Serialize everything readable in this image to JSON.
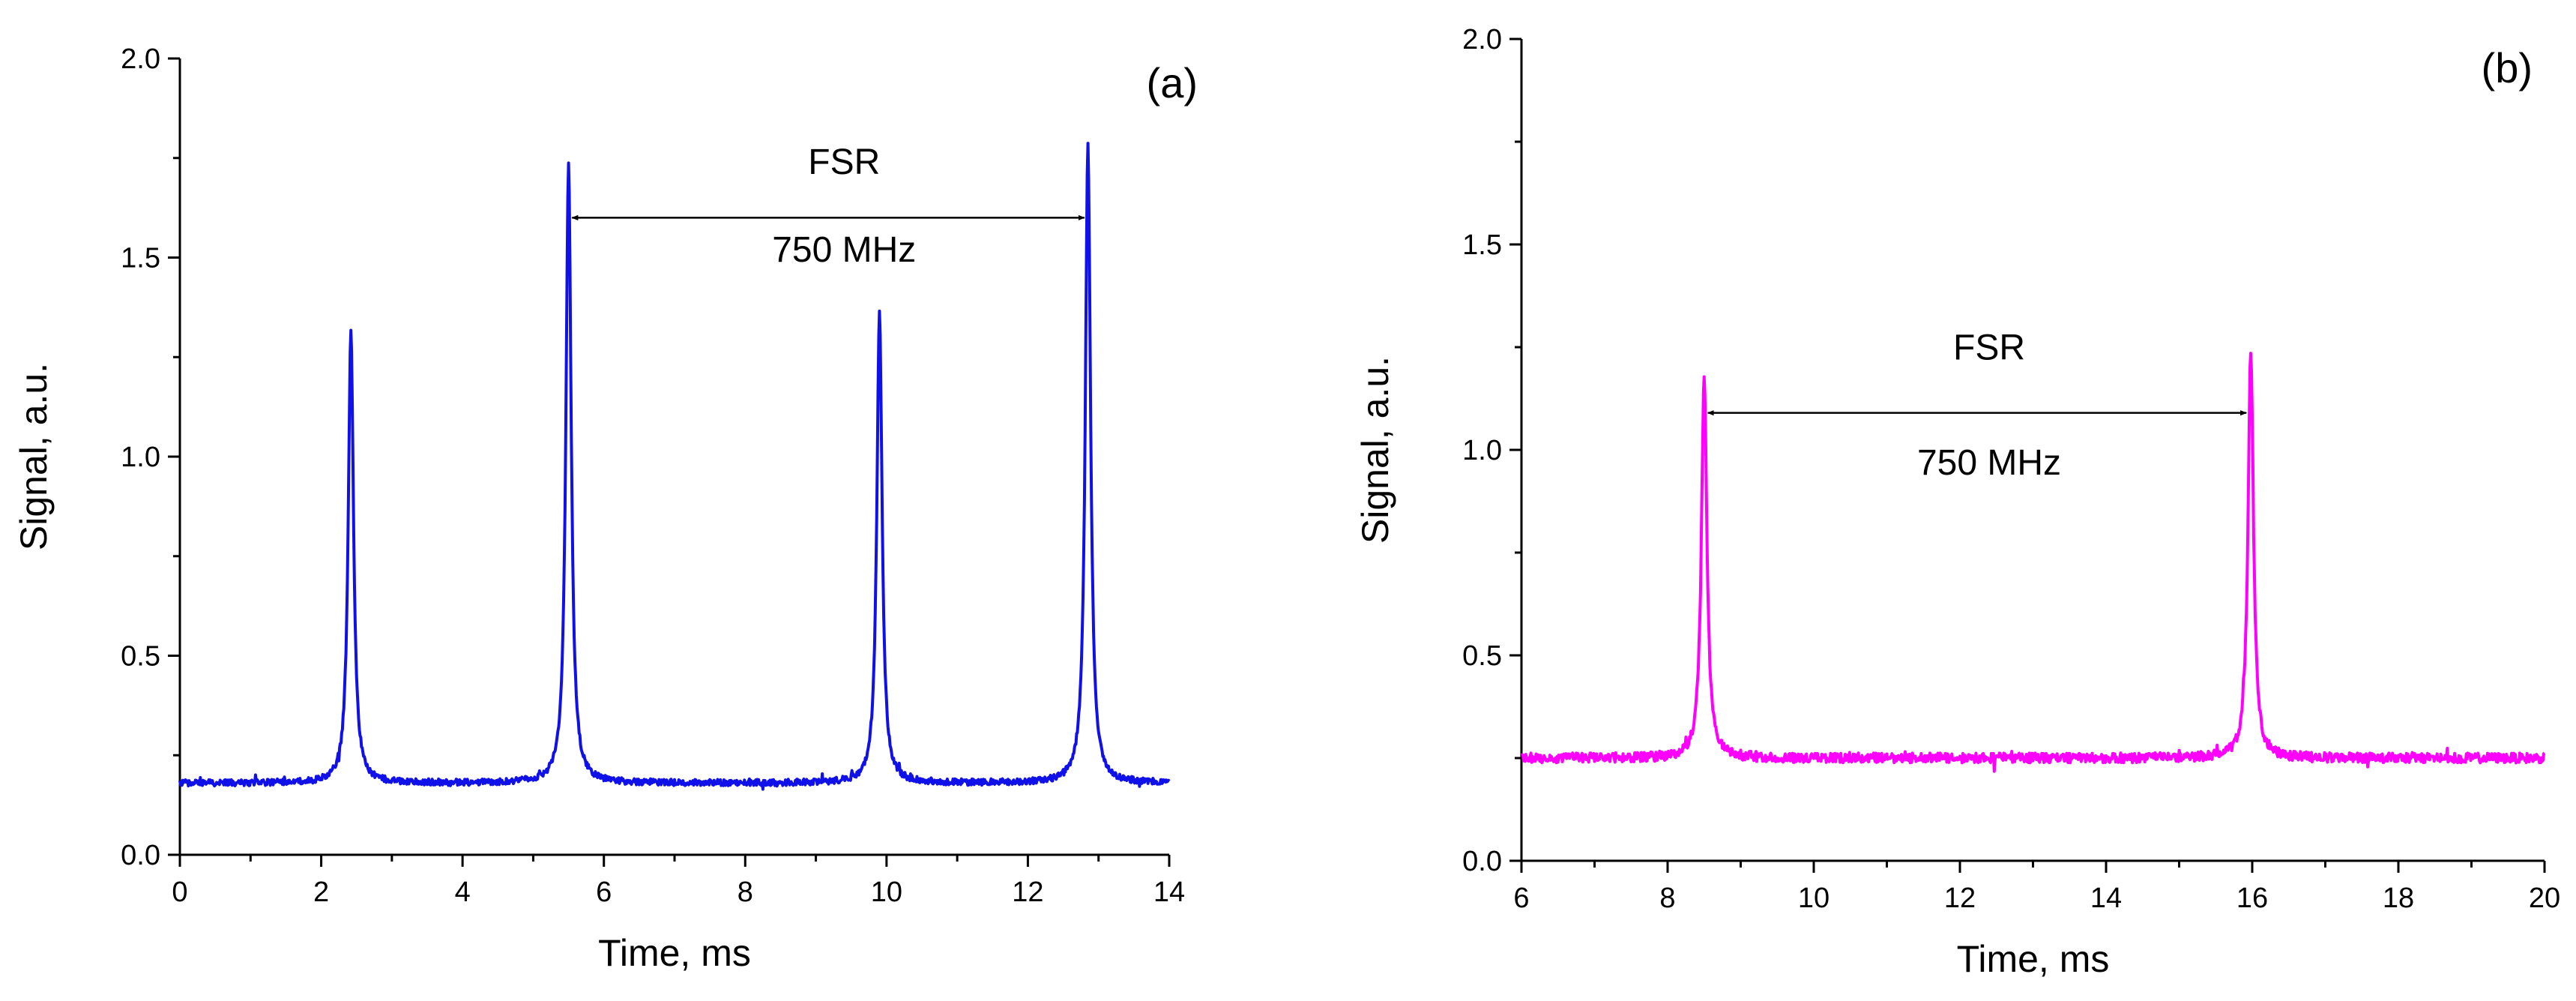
{
  "chart_data": [
    {
      "type": "line",
      "panel_label": "(a)",
      "xlabel": "Time, ms",
      "ylabel": "Signal, a.u.",
      "xlim": [
        0,
        14
      ],
      "ylim": [
        0,
        2.0
      ],
      "x_ticks": [
        0,
        2,
        4,
        6,
        8,
        10,
        12,
        14
      ],
      "x_tick_labels": [
        "0",
        "2",
        "4",
        "6",
        "8",
        "10",
        "12",
        "14"
      ],
      "y_ticks": [
        0,
        0.5,
        1.0,
        1.5,
        2.0
      ],
      "y_tick_labels": [
        "0.0",
        "0.5",
        "1.0",
        "1.5",
        "2.0"
      ],
      "series": [
        {
          "name": "signal (a)",
          "color": "#1010e8",
          "baseline": 0.18,
          "noise": 0.008,
          "x_step": 0.01,
          "peaks": [
            {
              "center": 2.42,
              "height": 1.32
            },
            {
              "center": 5.5,
              "height": 1.73
            },
            {
              "center": 9.9,
              "height": 1.36
            },
            {
              "center": 12.85,
              "height": 1.78
            }
          ]
        }
      ],
      "annotations": [
        {
          "type": "double-arrow",
          "x1": 5.55,
          "x2": 12.8,
          "y": 1.6
        },
        {
          "type": "text",
          "text": "FSR",
          "x": 9.4,
          "y": 1.71
        },
        {
          "type": "text",
          "text": "750 MHz",
          "x": 9.4,
          "y": 1.49
        }
      ]
    },
    {
      "type": "line",
      "panel_label": "(b)",
      "xlabel": "Time, ms",
      "ylabel": "Signal, a.u.",
      "xlim": [
        6,
        20
      ],
      "ylim": [
        0,
        2.0
      ],
      "x_ticks": [
        6,
        8,
        10,
        12,
        14,
        16,
        18,
        20
      ],
      "x_tick_labels": [
        "6",
        "8",
        "10",
        "12",
        "14",
        "16",
        "18",
        "20"
      ],
      "y_ticks": [
        0,
        0.5,
        1.0,
        1.5,
        2.0
      ],
      "y_tick_labels": [
        "0.0",
        "0.5",
        "1.0",
        "1.5",
        "2.0"
      ],
      "series": [
        {
          "name": "signal (b)",
          "color": "#ff00ff",
          "baseline": 0.25,
          "noise": 0.012,
          "x_step": 0.01,
          "peaks": [
            {
              "center": 8.5,
              "height": 1.18
            },
            {
              "center": 15.98,
              "height": 1.24
            }
          ]
        }
      ],
      "annotations": [
        {
          "type": "double-arrow",
          "x1": 8.55,
          "x2": 15.92,
          "y": 1.09
        },
        {
          "type": "text",
          "text": "FSR",
          "x": 12.4,
          "y": 1.22
        },
        {
          "type": "text",
          "text": "750 MHz",
          "x": 12.4,
          "y": 0.94
        }
      ]
    }
  ]
}
